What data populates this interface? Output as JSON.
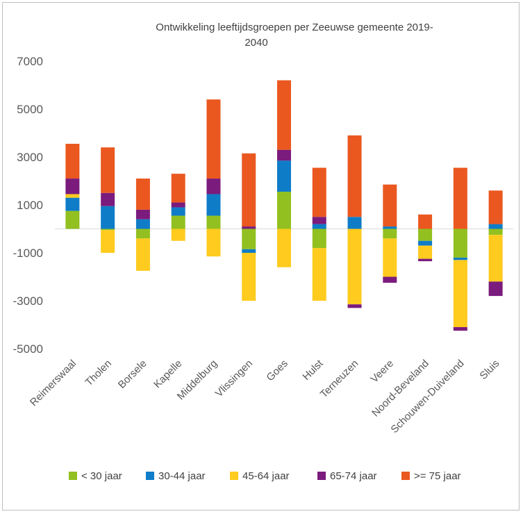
{
  "chart_data": {
    "type": "stacked-bar",
    "title": "Ontwikkeling leeftijdsgroepen per Zeeuwse gemeente 2019-2040",
    "title_lines": [
      "Ontwikkeling leeftijdsgroepen per Zeeuwse gemeente 2019-",
      "2040"
    ],
    "xlabel": "",
    "ylabel": "",
    "ylim": [
      -5000,
      7000
    ],
    "yticks": [
      7000,
      5000,
      3000,
      1000,
      -1000,
      -3000,
      -5000
    ],
    "categories": [
      "Reimerswaal",
      "Tholen",
      "Borsele",
      "Kapelle",
      "Middelburg",
      "Vlissingen",
      "Goes",
      "Hulst",
      "Terneuzen",
      "Veere",
      "Noord-Beveland",
      "Schouwen-Duiveland",
      "Sluis"
    ],
    "series": [
      {
        "name": "< 30 jaar",
        "color": "#92c020",
        "values": [
          750,
          -50,
          -400,
          550,
          550,
          -850,
          1550,
          -800,
          0,
          -400,
          -500,
          -1200,
          -250
        ]
      },
      {
        "name": "30-44 jaar",
        "color": "#0f7cc8",
        "values": [
          550,
          950,
          400,
          350,
          900,
          -150,
          1300,
          200,
          500,
          100,
          -200,
          -100,
          200
        ]
      },
      {
        "name": "45-64 jaar",
        "color": "#fecb1e",
        "values": [
          150,
          -950,
          -1350,
          -500,
          -1150,
          -2000,
          -1600,
          -2200,
          -3150,
          -1600,
          -550,
          -2800,
          -1950
        ]
      },
      {
        "name": "65-74 jaar",
        "color": "#7b1b7d",
        "values": [
          650,
          550,
          400,
          200,
          650,
          100,
          450,
          300,
          -150,
          -250,
          -100,
          -150,
          -600
        ]
      },
      {
        "name": ">= 75 jaar",
        "color": "#ea5820",
        "values": [
          1450,
          1900,
          1300,
          1200,
          3300,
          3050,
          2900,
          2050,
          3400,
          1750,
          600,
          2550,
          1400
        ]
      }
    ],
    "legend_position": "bottom"
  }
}
